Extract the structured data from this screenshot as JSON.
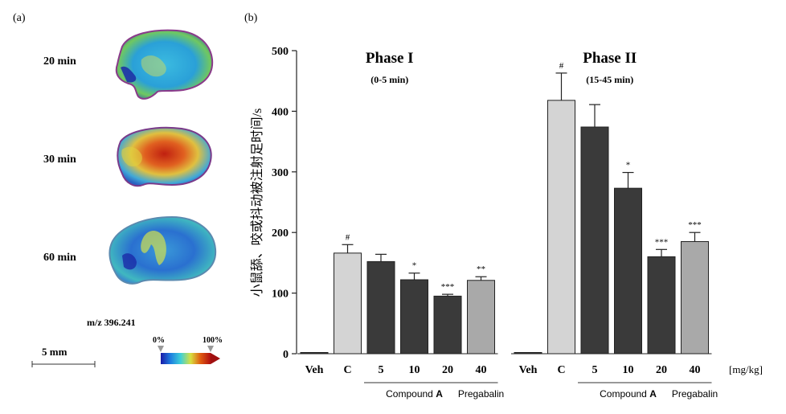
{
  "panel_a": {
    "label": "(a)",
    "times": [
      "20 min",
      "30 min",
      "60 min"
    ],
    "mz": "m/z 396.241",
    "scale_bar": "5 mm",
    "colorbar": {
      "min_label": "0%",
      "max_label": "100%",
      "colors": [
        "#1a1aa8",
        "#1e7fe0",
        "#3ed0d8",
        "#d8e040",
        "#e05a10",
        "#b01010"
      ]
    }
  },
  "panel_b": {
    "label": "(b)"
  },
  "colors": {
    "veh": "#333333",
    "control": "#d4d4d4",
    "compound": "#3a3a3a",
    "pregabalin": "#a9a9a9"
  },
  "chart_data": {
    "type": "bar",
    "ylabel": "小鼠舔、咬或抖动被注射足时间/s",
    "ylim": [
      0,
      500
    ],
    "yticks": [
      0,
      100,
      200,
      300,
      400,
      500
    ],
    "unit": "[mg/kg]",
    "categories": [
      "Veh",
      "C",
      "5",
      "10",
      "20",
      "40"
    ],
    "groups": [
      {
        "text": "Compound A",
        "span": [
          2,
          4
        ]
      },
      {
        "text": "Pregabalin",
        "span": [
          5,
          5
        ]
      }
    ],
    "fill_keys": [
      "veh",
      "control",
      "compound",
      "compound",
      "compound",
      "pregabalin"
    ],
    "panels": [
      {
        "title": "Phase I",
        "subtitle": "(0-5 min)",
        "values": [
          2,
          166,
          152,
          122,
          95,
          121
        ],
        "errors": [
          1,
          14,
          12,
          11,
          3,
          6
        ],
        "sig": [
          "",
          "#",
          "",
          "*",
          "***",
          "**"
        ]
      },
      {
        "title": "Phase II",
        "subtitle": "(15-45 min)",
        "values": [
          2,
          418,
          374,
          273,
          160,
          185
        ],
        "errors": [
          1,
          45,
          37,
          26,
          12,
          15
        ],
        "sig": [
          "",
          "#",
          "",
          "*",
          "***",
          "***"
        ]
      }
    ]
  }
}
